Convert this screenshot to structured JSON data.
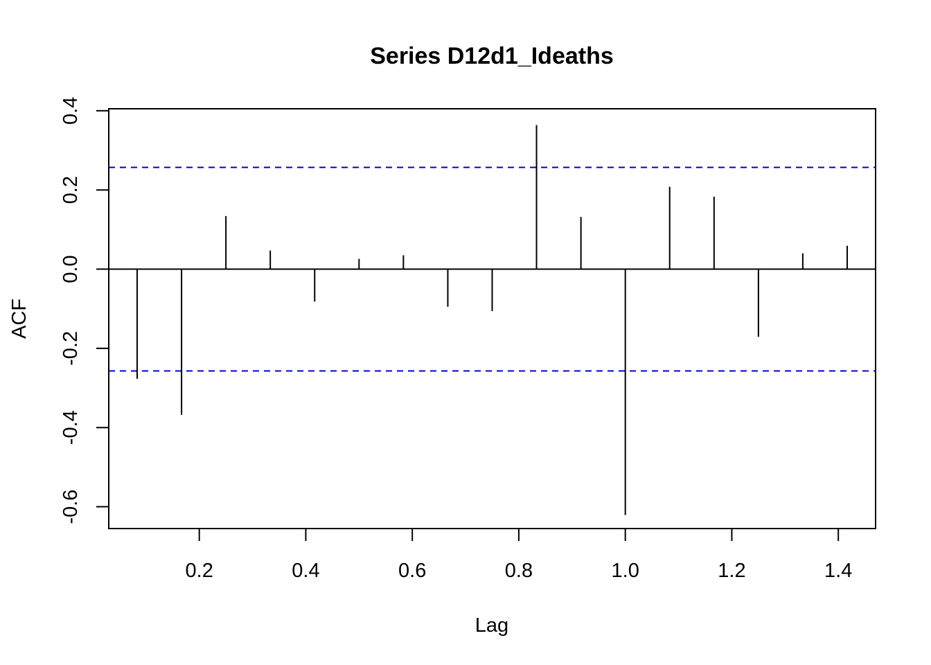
{
  "chart_data": {
    "type": "bar",
    "subtype": "acf-stem",
    "title": "Series D12d1_Ideaths",
    "xlabel": "Lag",
    "ylabel": "ACF",
    "xlim": [
      0.03,
      1.47
    ],
    "ylim": [
      -0.655,
      0.405
    ],
    "xticks": [
      {
        "value": 0.2,
        "label": "0.2"
      },
      {
        "value": 0.4,
        "label": "0.4"
      },
      {
        "value": 0.6,
        "label": "0.6"
      },
      {
        "value": 0.8,
        "label": "0.8"
      },
      {
        "value": 1.0,
        "label": "1.0"
      },
      {
        "value": 1.2,
        "label": "1.2"
      },
      {
        "value": 1.4,
        "label": "1.4"
      }
    ],
    "yticks": [
      {
        "value": -0.6,
        "label": "-0.6"
      },
      {
        "value": -0.4,
        "label": "-0.4"
      },
      {
        "value": -0.2,
        "label": "-0.2"
      },
      {
        "value": 0.0,
        "label": "0.0"
      },
      {
        "value": 0.2,
        "label": "0.2"
      },
      {
        "value": 0.4,
        "label": "0.4"
      }
    ],
    "series": [
      {
        "x": [
          0.0833,
          0.1667,
          0.25,
          0.3333,
          0.4167,
          0.5,
          0.5833,
          0.6667,
          0.75,
          0.8333,
          0.9167,
          1.0,
          1.0833,
          1.1667,
          1.25,
          1.3333,
          1.4167
        ],
        "values": [
          -0.277,
          -0.368,
          0.134,
          0.047,
          -0.082,
          0.026,
          0.035,
          -0.095,
          -0.106,
          0.364,
          0.132,
          -0.621,
          0.208,
          0.183,
          -0.171,
          0.04,
          0.059
        ]
      }
    ],
    "confidence_band": 0.257,
    "grid": false,
    "colors": {
      "stem": "#000000",
      "band": "#0000cc",
      "axis": "#000000"
    }
  }
}
